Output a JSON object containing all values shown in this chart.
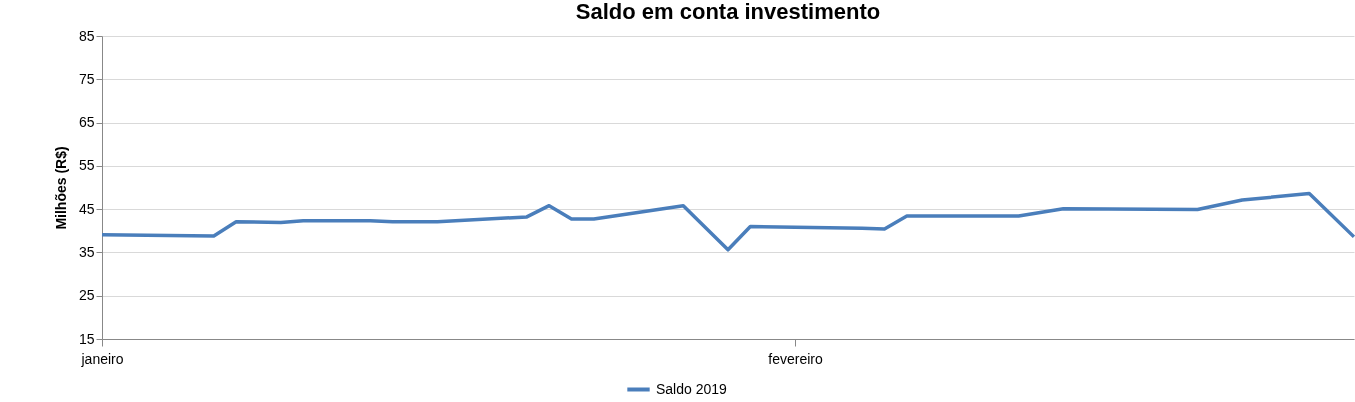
{
  "chart_data": {
    "type": "line",
    "title": "Saldo em conta investimento",
    "ylabel": "Milhões (R$)",
    "categories": [
      "janeiro",
      null,
      null,
      null,
      null,
      null,
      null,
      null,
      null,
      null,
      null,
      null,
      null,
      null,
      null,
      null,
      null,
      null,
      null,
      null,
      null,
      null,
      null,
      null,
      null,
      null,
      null,
      null,
      null,
      null,
      null,
      "fevereiro",
      null,
      null,
      null,
      null,
      null,
      null,
      null,
      null,
      null,
      null,
      null,
      null,
      null,
      null,
      null,
      null,
      null,
      null,
      null,
      null,
      null,
      null,
      null,
      null,
      null
    ],
    "series": [
      {
        "name": "Saldo 2019",
        "color": "#4a7ebb",
        "values": [
          39.1,
          null,
          null,
          null,
          null,
          38.8,
          42.1,
          null,
          41.9,
          42.3,
          null,
          null,
          42.3,
          42.1,
          null,
          42.1,
          null,
          null,
          null,
          43.2,
          45.8,
          42.7,
          42.7,
          null,
          null,
          null,
          45.8,
          null,
          35.6,
          41.0,
          null,
          null,
          null,
          null,
          40.6,
          40.4,
          43.4,
          null,
          null,
          null,
          null,
          43.4,
          null,
          45.1,
          null,
          null,
          null,
          null,
          null,
          44.9,
          null,
          47.1,
          null,
          null,
          48.6,
          null,
          38.6
        ]
      }
    ],
    "ylim": [
      15,
      85
    ],
    "yticks": [
      15,
      25,
      35,
      45,
      55,
      65,
      75,
      85
    ],
    "grid": "y",
    "legend": "bottom",
    "marker": "none",
    "line_style": "solid"
  }
}
